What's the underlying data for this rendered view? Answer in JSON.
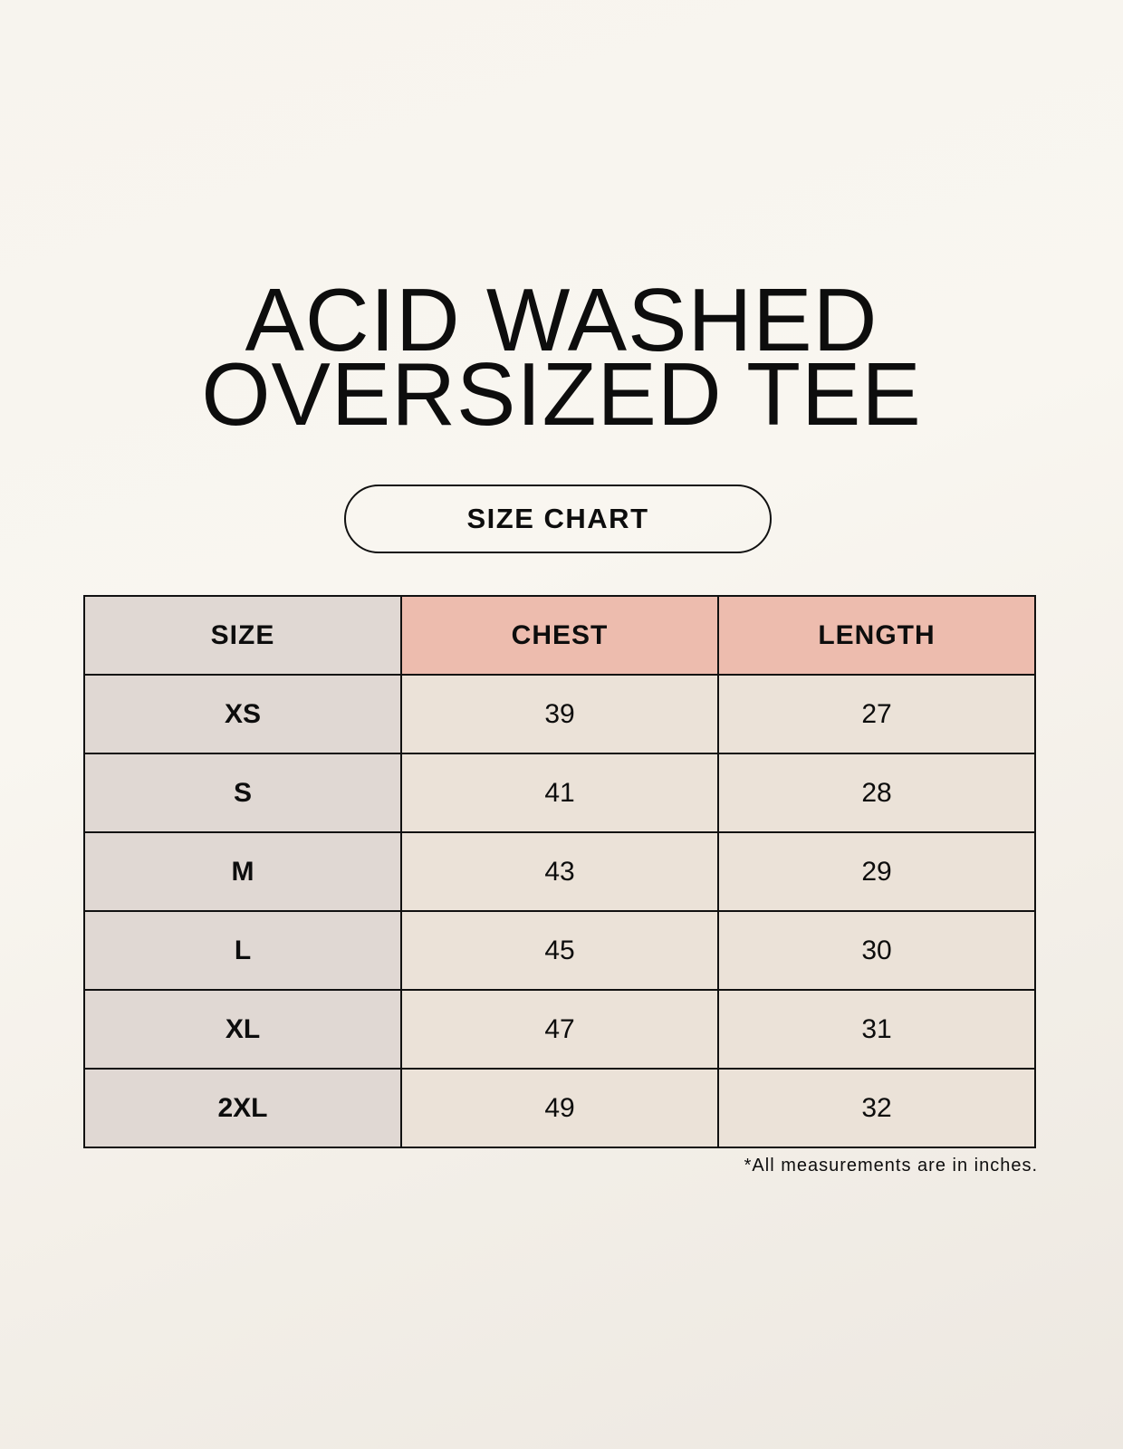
{
  "title_lines": [
    "ACID WASHED",
    "OVERSIZED TEE"
  ],
  "subtitle": "SIZE CHART",
  "table": {
    "headers": [
      "SIZE",
      "CHEST",
      "LENGTH"
    ],
    "rows": [
      [
        "XS",
        "39",
        "27"
      ],
      [
        "S",
        "41",
        "28"
      ],
      [
        "M",
        "43",
        "29"
      ],
      [
        "L",
        "45",
        "30"
      ],
      [
        "XL",
        "47",
        "31"
      ],
      [
        "2XL",
        "49",
        "32"
      ]
    ]
  },
  "note": "*All measurements are in inches.",
  "colors": {
    "size_column": "#e0d8d3",
    "measure_header": "#edbcae",
    "measure_cells": "#ebe2d8"
  }
}
